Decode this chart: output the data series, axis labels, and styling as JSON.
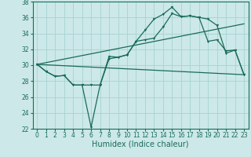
{
  "background_color": "#cce8e8",
  "grid_color": "#9fcfcf",
  "line_color": "#1a6b5a",
  "xlim": [
    -0.5,
    23.5
  ],
  "ylim": [
    22,
    38
  ],
  "xticks": [
    0,
    1,
    2,
    3,
    4,
    5,
    6,
    7,
    8,
    9,
    10,
    11,
    12,
    13,
    14,
    15,
    16,
    17,
    18,
    19,
    20,
    21,
    22,
    23
  ],
  "yticks": [
    22,
    24,
    26,
    28,
    30,
    32,
    34,
    36,
    38
  ],
  "xlabel": "Humidex (Indice chaleur)",
  "xlabel_fontsize": 7,
  "tick_fontsize": 5.5,
  "line1_x": [
    0,
    1,
    2,
    3,
    4,
    5,
    6,
    7,
    8,
    9,
    10,
    11,
    12,
    13,
    14,
    15,
    16,
    17,
    18,
    19,
    20,
    21,
    22,
    23
  ],
  "line1_y": [
    30.1,
    29.2,
    28.6,
    28.7,
    27.5,
    27.5,
    22.2,
    27.5,
    30.8,
    31.0,
    31.3,
    33.0,
    34.4,
    35.8,
    36.4,
    37.3,
    36.1,
    36.2,
    36.0,
    35.8,
    35.0,
    31.5,
    31.9,
    28.8
  ],
  "line2_x": [
    0,
    1,
    2,
    3,
    4,
    5,
    6,
    7,
    8,
    9,
    10,
    11,
    12,
    13,
    14,
    15,
    16,
    17,
    18,
    19,
    20,
    21,
    22,
    23
  ],
  "line2_y": [
    30.1,
    29.2,
    28.6,
    28.7,
    27.5,
    27.5,
    27.5,
    27.5,
    31.1,
    31.0,
    31.3,
    33.0,
    33.2,
    33.4,
    34.8,
    36.5,
    36.1,
    36.2,
    36.0,
    33.0,
    33.2,
    31.8,
    31.9,
    28.8
  ],
  "line3_x": [
    0,
    23
  ],
  "line3_y": [
    30.1,
    35.2
  ],
  "line4_x": [
    0,
    23
  ],
  "line4_y": [
    30.1,
    28.8
  ]
}
